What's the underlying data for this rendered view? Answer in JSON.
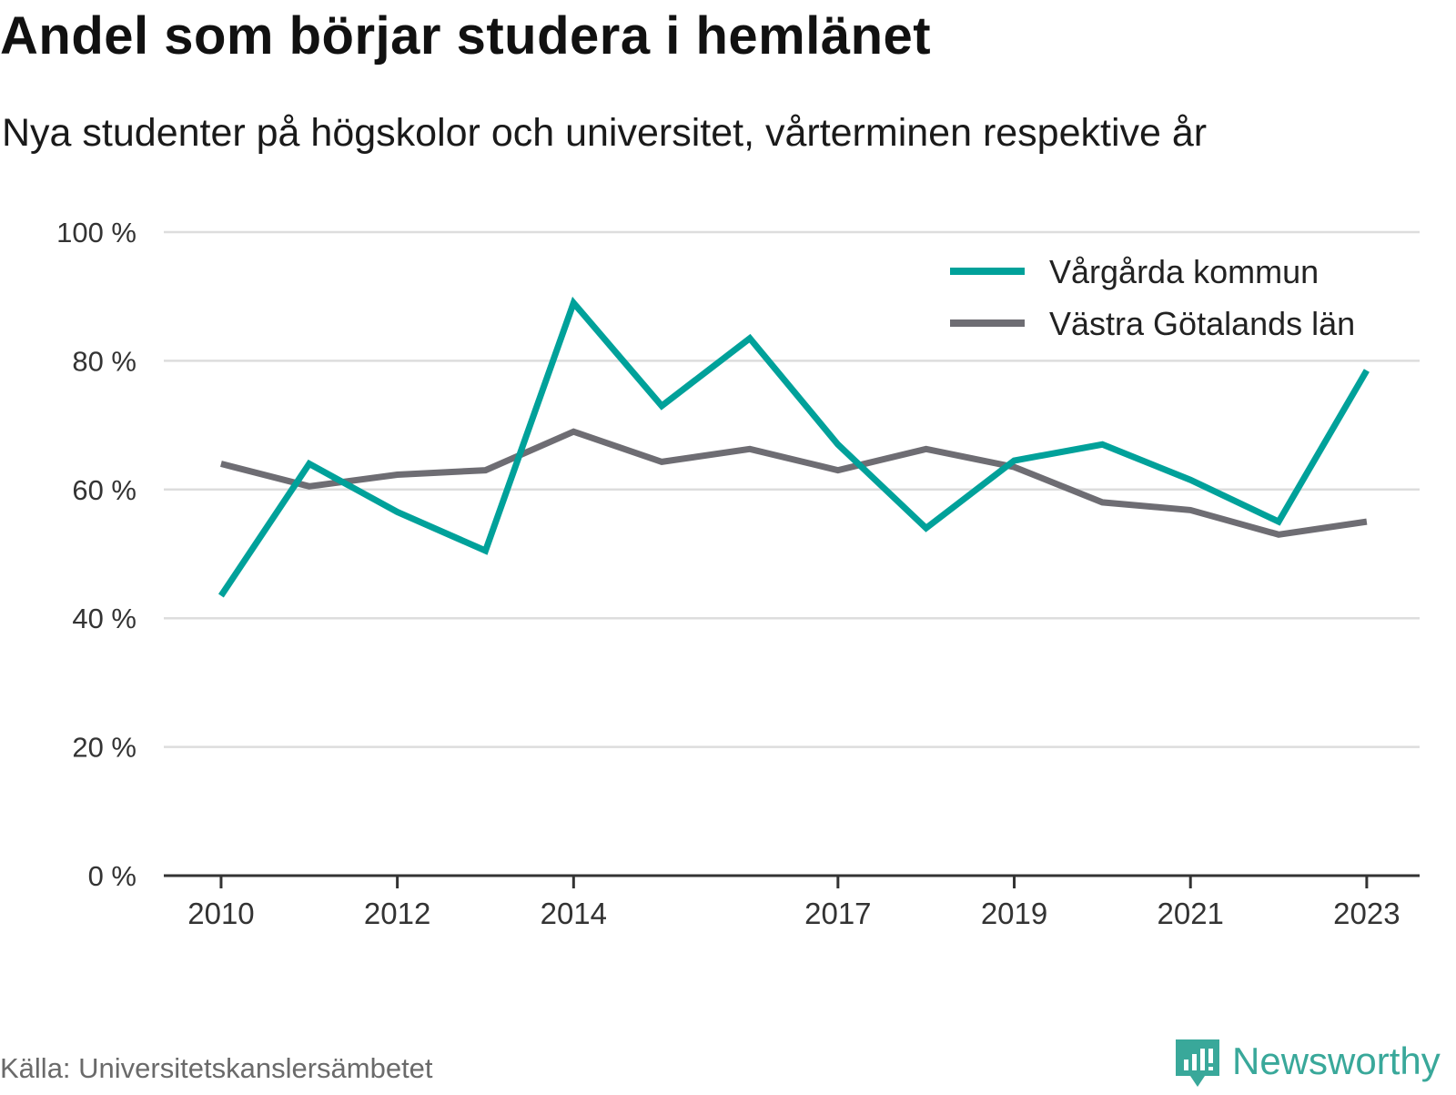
{
  "title": "Andel som börjar studera i hemlänet",
  "subtitle": "Nya studenter på högskolor och universitet, vårterminen respektive år",
  "source": "Källa: Universitetskanslersämbetet",
  "brand": "Newsworthy",
  "colors": {
    "series_1": "#00a19a",
    "series_2": "#6e6d73",
    "grid": "#dddddd",
    "axis": "#333333",
    "brand": "#39a89a"
  },
  "chart_data": {
    "type": "line",
    "x": [
      2010,
      2011,
      2012,
      2013,
      2014,
      2015,
      2016,
      2017,
      2018,
      2019,
      2020,
      2021,
      2022,
      2023
    ],
    "x_tick_labels": [
      "2010",
      "2012",
      "2014",
      "2017",
      "2019",
      "2021",
      "2023"
    ],
    "x_tick_values": [
      2010,
      2012,
      2014,
      2017,
      2019,
      2021,
      2023
    ],
    "y_tick_labels": [
      "0 %",
      "20 %",
      "40 %",
      "60 %",
      "80 %",
      "100 %"
    ],
    "y_tick_values": [
      0,
      20,
      40,
      60,
      80,
      100
    ],
    "ylim": [
      0,
      100
    ],
    "grid": true,
    "legend_position": "top-right",
    "series": [
      {
        "name": "Vårgårda kommun",
        "color": "#00a19a",
        "values": [
          43.5,
          64,
          56.5,
          50.5,
          89,
          73,
          83.5,
          67,
          54,
          64.5,
          67,
          61.5,
          55,
          78.5
        ]
      },
      {
        "name": "Västra Götalands län",
        "color": "#6e6d73",
        "values": [
          64,
          60.5,
          62.3,
          63,
          69,
          64.3,
          66.3,
          63,
          66.3,
          63.5,
          58,
          56.8,
          53,
          55
        ]
      }
    ]
  }
}
